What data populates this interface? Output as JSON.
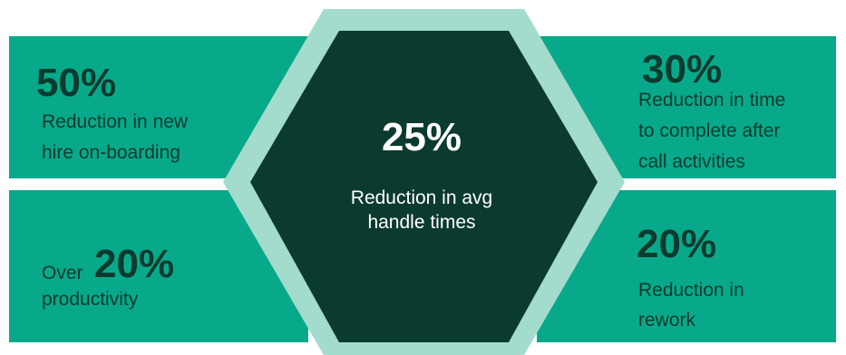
{
  "top_left": {
    "value": "50%",
    "line1": "Reduction in new",
    "line2": "hire on-boarding"
  },
  "bottom_left": {
    "prefix": "Over",
    "value": "20%",
    "line1": "productivity"
  },
  "top_right": {
    "value": "30%",
    "line1": "Reduction in time",
    "line2": "to complete after",
    "line3": "call activities"
  },
  "bottom_right": {
    "value": "20%",
    "line1": "Reduction in",
    "line2": "rework"
  },
  "center": {
    "value": "25%",
    "line1": "Reduction in avg",
    "line2": "handle times"
  },
  "colors": {
    "panel": "#08a98a",
    "hex_outer": "#a3dbcc",
    "hex_inner": "#0b3a2e",
    "text_dark": "#0b3a2e"
  }
}
